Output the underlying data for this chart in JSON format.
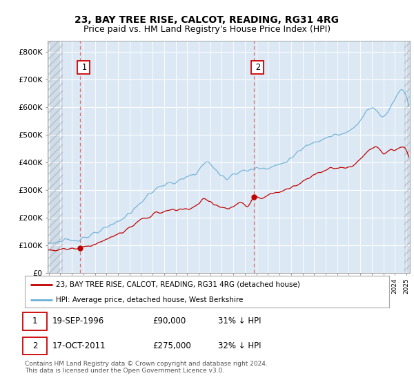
{
  "title": "23, BAY TREE RISE, CALCOT, READING, RG31 4RG",
  "subtitle": "Price paid vs. HM Land Registry's House Price Index (HPI)",
  "yticks": [
    0,
    100000,
    200000,
    300000,
    400000,
    500000,
    600000,
    700000,
    800000
  ],
  "ytick_labels": [
    "£0",
    "£100K",
    "£200K",
    "£300K",
    "£400K",
    "£500K",
    "£600K",
    "£700K",
    "£800K"
  ],
  "xlim_start": 1993.9,
  "xlim_end": 2025.3,
  "ylim": [
    0,
    840000
  ],
  "hpi_color": "#6baed6",
  "price_color": "#c00000",
  "plot_bg_color": "#dce9f5",
  "hatch_region_end": 1995.2,
  "hatch_region_start_right": 2024.85,
  "marker1_date": 1996.72,
  "marker1_y": 90000,
  "marker2_date": 2011.8,
  "marker2_y": 275000,
  "vline_color": "#e06060",
  "grid_color": "#ffffff",
  "bg_color": "#ffffff",
  "legend_line1": "23, BAY TREE RISE, CALCOT, READING, RG31 4RG (detached house)",
  "legend_line2": "HPI: Average price, detached house, West Berkshire",
  "footnote": "Contains HM Land Registry data © Crown copyright and database right 2024.\nThis data is licensed under the Open Government Licence v3.0.",
  "title_fontsize": 10,
  "subtitle_fontsize": 9,
  "axis_fontsize": 8,
  "table_fontsize": 8.5
}
